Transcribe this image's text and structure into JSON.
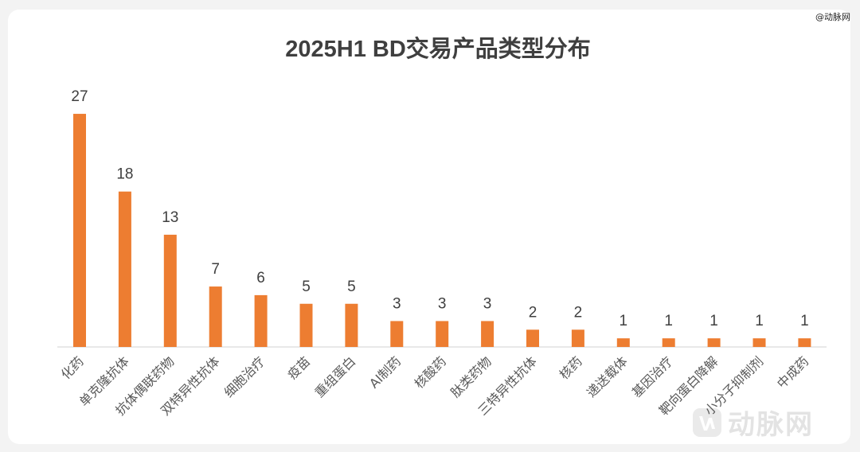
{
  "watermark": {
    "top_text": "@动脉网",
    "logo_text": "动脉网"
  },
  "colors": {
    "bar": "#ED7D31",
    "axis": "#d0d0d0"
  },
  "chart_data": {
    "type": "bar",
    "title": "2025H1 BD交易产品类型分布",
    "xlabel": "",
    "ylabel": "",
    "ylim": [
      0,
      27
    ],
    "grid": false,
    "legend": "none",
    "categories": [
      "化药",
      "单克隆抗体",
      "抗体偶联药物",
      "双特异性抗体",
      "细胞治疗",
      "疫苗",
      "重组蛋白",
      "AI制药",
      "核酸药",
      "肽类药物",
      "三特异性抗体",
      "核药",
      "递送载体",
      "基因治疗",
      "靶向蛋白降解",
      "小分子抑制剂",
      "中成药"
    ],
    "values": [
      27,
      18,
      13,
      7,
      6,
      5,
      5,
      3,
      3,
      3,
      2,
      2,
      1,
      1,
      1,
      1,
      1
    ]
  }
}
